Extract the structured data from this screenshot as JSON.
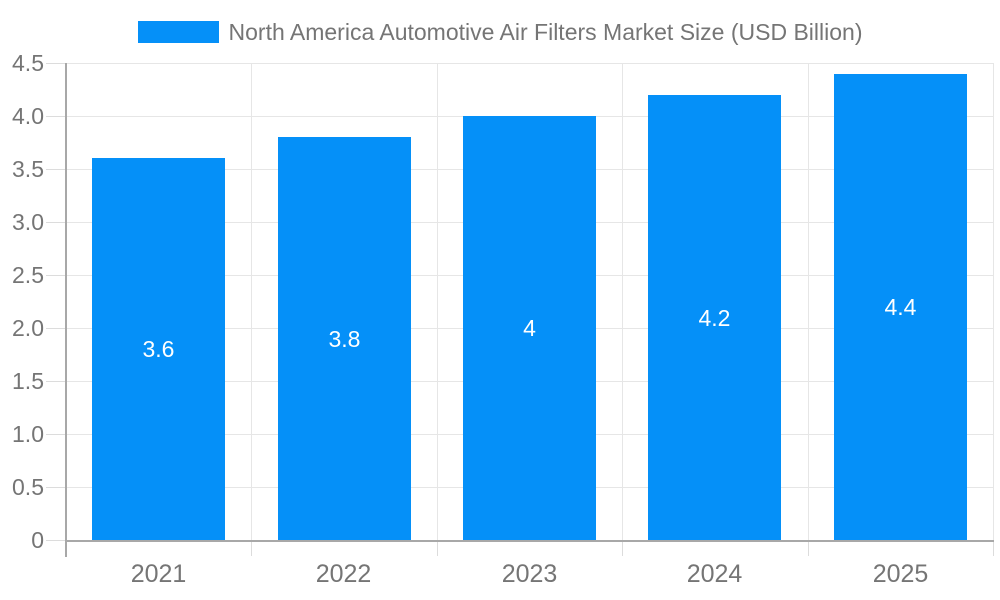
{
  "legend": {
    "label": "North America Automotive Air Filters Market Size (USD Billion)"
  },
  "chart_data": {
    "type": "bar",
    "title": "North America Automotive Air Filters Market Size (USD Billion)",
    "categories": [
      "2021",
      "2022",
      "2023",
      "2024",
      "2025"
    ],
    "values": [
      3.6,
      3.8,
      4,
      4.2,
      4.4
    ],
    "value_labels": [
      "3.6",
      "3.8",
      "4",
      "4.2",
      "4.4"
    ],
    "xlabel": "",
    "ylabel": "",
    "ylim": [
      0,
      4.5
    ],
    "ytick_step": 0.5,
    "ytick_labels": [
      "0",
      "0.5",
      "1.0",
      "1.5",
      "2.0",
      "2.5",
      "3.0",
      "3.5",
      "4.0",
      "4.5"
    ],
    "grid": true,
    "legend_position": "top",
    "colors": {
      "bar": "#0590F8",
      "grid": "#E6E6E6",
      "tick": "#DCDCDC",
      "axis": "#A8A8A8",
      "tick_text": "#757575",
      "value_text": "#FFFFFF",
      "background": "#FFFFFF"
    }
  }
}
